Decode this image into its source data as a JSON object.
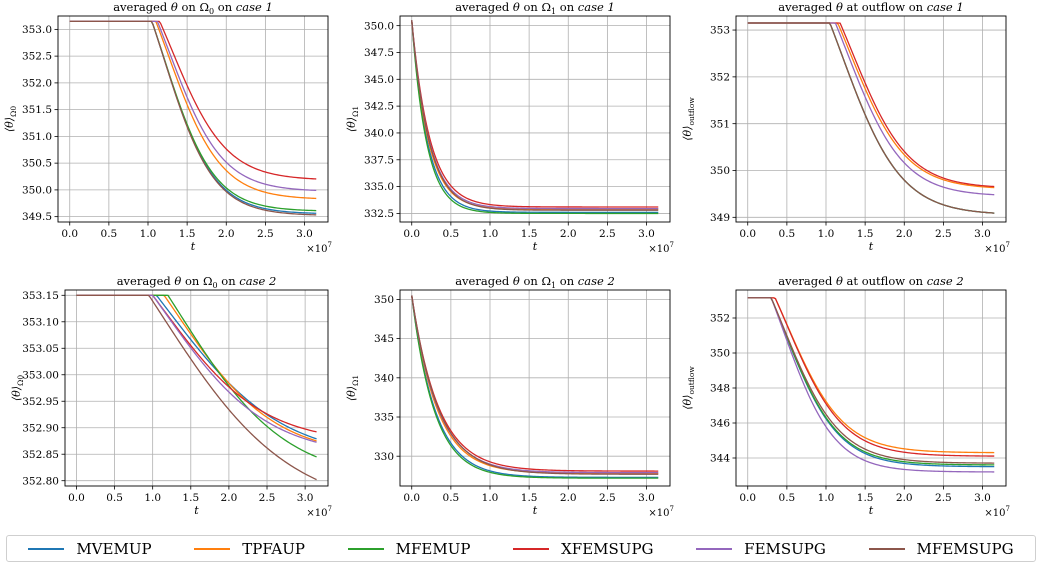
{
  "colors": {
    "MVEMUP": "#1f77b4",
    "TPFAUP": "#ff7f0e",
    "MFEMUP": "#2ca02c",
    "XFEMSUPG": "#d62728",
    "FEMSUPG": "#9467bd",
    "MFEMSUPG": "#8c564b"
  },
  "legend": [
    "MVEMUP",
    "TPFAUP",
    "MFEMUP",
    "XFEMSUPG",
    "FEMSUPG",
    "MFEMSUPG"
  ],
  "chart_data": [
    {
      "type": "line",
      "title": "averaged θ on Ω0 on case 1",
      "title_parts": [
        "averaged ",
        "θ",
        " on ",
        "Ω",
        "0",
        " on ",
        "case 1"
      ],
      "xlabel": "t",
      "x_multiplier": "×10",
      "x_exponent": "7",
      "ylabel_main": "⟨θ⟩",
      "ylabel_sub": "Ω0",
      "xlim": [
        -0.15,
        3.3
      ],
      "ylim": [
        349.4,
        353.25
      ],
      "xticks": [
        0.0,
        0.5,
        1.0,
        1.5,
        2.0,
        2.5,
        3.0
      ],
      "yticks": [
        349.5,
        350.0,
        350.5,
        351.0,
        351.5,
        352.0,
        352.5,
        353.0
      ],
      "ytick_format": 1,
      "grid": true,
      "series": [
        {
          "name": "MVEMUP",
          "start": 353.15,
          "end": 349.55,
          "t0": 1.05,
          "tau": 0.32
        },
        {
          "name": "TPFAUP",
          "start": 353.15,
          "end": 349.82,
          "t0": 1.1,
          "tau": 0.34
        },
        {
          "name": "MFEMUP",
          "start": 353.15,
          "end": 349.6,
          "t0": 1.05,
          "tau": 0.32
        },
        {
          "name": "XFEMSUPG",
          "start": 353.15,
          "end": 350.18,
          "t0": 1.15,
          "tau": 0.35
        },
        {
          "name": "FEMSUPG",
          "start": 353.15,
          "end": 349.97,
          "t0": 1.12,
          "tau": 0.34
        },
        {
          "name": "MFEMSUPG",
          "start": 353.15,
          "end": 349.52,
          "t0": 1.05,
          "tau": 0.32
        }
      ]
    },
    {
      "type": "line",
      "title": "averaged θ on Ω1 on case 1",
      "title_parts": [
        "averaged ",
        "θ",
        " on ",
        "Ω",
        "1",
        " on ",
        "case 1"
      ],
      "xlabel": "t",
      "x_multiplier": "×10",
      "x_exponent": "7",
      "ylabel_main": "⟨θ⟩",
      "ylabel_sub": "Ω1",
      "xlim": [
        -0.15,
        3.3
      ],
      "ylim": [
        331.7,
        350.9
      ],
      "xticks": [
        0.0,
        0.5,
        1.0,
        1.5,
        2.0,
        2.5,
        3.0
      ],
      "yticks": [
        332.5,
        335.0,
        337.5,
        340.0,
        342.5,
        345.0,
        347.5,
        350.0
      ],
      "ytick_format": 1,
      "grid": true,
      "series": [
        {
          "name": "MVEMUP",
          "start": 350.5,
          "end": 332.6,
          "t0": 0.0,
          "tau": 0.2
        },
        {
          "name": "TPFAUP",
          "start": 350.5,
          "end": 332.9,
          "t0": 0.0,
          "tau": 0.21
        },
        {
          "name": "MFEMUP",
          "start": 350.5,
          "end": 332.5,
          "t0": 0.0,
          "tau": 0.19
        },
        {
          "name": "XFEMSUPG",
          "start": 350.5,
          "end": 333.1,
          "t0": 0.0,
          "tau": 0.23
        },
        {
          "name": "FEMSUPG",
          "start": 350.5,
          "end": 332.95,
          "t0": 0.0,
          "tau": 0.22
        },
        {
          "name": "MFEMSUPG",
          "start": 350.5,
          "end": 332.8,
          "t0": 0.0,
          "tau": 0.22
        }
      ]
    },
    {
      "type": "line",
      "title": "averaged θ at outflow on case 1",
      "title_parts": [
        "averaged ",
        "θ",
        " at outflow on ",
        "",
        "",
        "",
        "case 1"
      ],
      "xlabel": "t",
      "x_multiplier": "×10",
      "x_exponent": "7",
      "ylabel_main": "⟨θ⟩",
      "ylabel_sub": "outflow",
      "xlim": [
        -0.15,
        3.3
      ],
      "ylim": [
        348.9,
        353.3
      ],
      "xticks": [
        0.0,
        0.5,
        1.0,
        1.5,
        2.0,
        2.5,
        3.0
      ],
      "yticks": [
        349,
        350,
        351,
        352,
        353
      ],
      "ytick_format": 0,
      "grid": true,
      "series": [
        {
          "name": "MVEMUP",
          "start": 353.15,
          "end": 349.05,
          "t0": 1.05,
          "tau": 0.38
        },
        {
          "name": "TPFAUP",
          "start": 353.15,
          "end": 349.6,
          "t0": 1.15,
          "tau": 0.36
        },
        {
          "name": "MFEMUP",
          "start": 353.15,
          "end": 349.05,
          "t0": 1.05,
          "tau": 0.38
        },
        {
          "name": "XFEMSUPG",
          "start": 353.15,
          "end": 349.62,
          "t0": 1.18,
          "tau": 0.36
        },
        {
          "name": "FEMSUPG",
          "start": 353.15,
          "end": 349.45,
          "t0": 1.12,
          "tau": 0.36
        },
        {
          "name": "MFEMSUPG",
          "start": 353.15,
          "end": 349.05,
          "t0": 1.05,
          "tau": 0.38
        }
      ]
    },
    {
      "type": "line",
      "title": "averaged θ on Ω0 on case 2",
      "title_parts": [
        "averaged ",
        "θ",
        " on ",
        "Ω",
        "0",
        " on ",
        "case 2"
      ],
      "xlabel": "t",
      "x_multiplier": "×10",
      "x_exponent": "7",
      "ylabel_main": "⟨θ⟩",
      "ylabel_sub": "Ω0",
      "xlim": [
        -0.15,
        3.3
      ],
      "ylim": [
        352.79,
        353.16
      ],
      "xticks": [
        0.0,
        0.5,
        1.0,
        1.5,
        2.0,
        2.5,
        3.0
      ],
      "yticks": [
        352.8,
        352.85,
        352.9,
        352.95,
        353.0,
        353.05,
        353.1,
        353.15
      ],
      "ytick_format": 2,
      "grid": true,
      "series": [
        {
          "name": "MVEMUP",
          "start": 353.15,
          "end": 352.84,
          "t0": 1.05,
          "tau": 0.75
        },
        {
          "name": "TPFAUP",
          "start": 353.15,
          "end": 352.845,
          "t0": 1.15,
          "tau": 0.65
        },
        {
          "name": "MFEMUP",
          "start": 353.15,
          "end": 352.8,
          "t0": 1.2,
          "tau": 0.7
        },
        {
          "name": "XFEMSUPG",
          "start": 353.15,
          "end": 352.87,
          "t0": 1.0,
          "tau": 0.65
        },
        {
          "name": "FEMSUPG",
          "start": 353.15,
          "end": 352.845,
          "t0": 1.0,
          "tau": 0.68
        },
        {
          "name": "MFEMSUPG",
          "start": 353.15,
          "end": 352.74,
          "t0": 0.95,
          "tau": 0.85
        }
      ]
    },
    {
      "type": "line",
      "title": "averaged θ on Ω1 on case 2",
      "title_parts": [
        "averaged ",
        "θ",
        " on ",
        "Ω",
        "1",
        " on ",
        "case 2"
      ],
      "xlabel": "t",
      "x_multiplier": "×10",
      "x_exponent": "7",
      "ylabel_main": "⟨θ⟩",
      "ylabel_sub": "Ω1",
      "xlim": [
        -0.15,
        3.3
      ],
      "ylim": [
        326.2,
        351.2
      ],
      "xticks": [
        0.0,
        0.5,
        1.0,
        1.5,
        2.0,
        2.5,
        3.0
      ],
      "yticks": [
        330,
        335,
        340,
        345,
        350
      ],
      "ytick_format": 0,
      "grid": true,
      "series": [
        {
          "name": "MVEMUP",
          "start": 350.5,
          "end": 327.3,
          "t0": 0.0,
          "tau": 0.3
        },
        {
          "name": "TPFAUP",
          "start": 350.5,
          "end": 327.8,
          "t0": 0.0,
          "tau": 0.32
        },
        {
          "name": "MFEMUP",
          "start": 350.5,
          "end": 327.2,
          "t0": 0.0,
          "tau": 0.29
        },
        {
          "name": "XFEMSUPG",
          "start": 350.5,
          "end": 328.1,
          "t0": 0.0,
          "tau": 0.34
        },
        {
          "name": "FEMSUPG",
          "start": 350.5,
          "end": 327.9,
          "t0": 0.0,
          "tau": 0.33
        },
        {
          "name": "MFEMSUPG",
          "start": 350.5,
          "end": 327.7,
          "t0": 0.0,
          "tau": 0.34
        }
      ]
    },
    {
      "type": "line",
      "title": "averaged θ at outflow on case 2",
      "title_parts": [
        "averaged ",
        "θ",
        " at outflow on ",
        "",
        "",
        "",
        "case 2"
      ],
      "xlabel": "t",
      "x_multiplier": "×10",
      "x_exponent": "7",
      "ylabel_main": "⟨θ⟩",
      "ylabel_sub": "outflow",
      "xlim": [
        -0.15,
        3.3
      ],
      "ylim": [
        342.4,
        353.6
      ],
      "xticks": [
        0.0,
        0.5,
        1.0,
        1.5,
        2.0,
        2.5,
        3.0
      ],
      "yticks": [
        344,
        346,
        348,
        350,
        352
      ],
      "ytick_format": 0,
      "grid": true,
      "series": [
        {
          "name": "MVEMUP",
          "start": 353.15,
          "end": 343.5,
          "t0": 0.3,
          "tau": 0.35
        },
        {
          "name": "TPFAUP",
          "start": 353.15,
          "end": 344.3,
          "t0": 0.35,
          "tau": 0.36
        },
        {
          "name": "MFEMUP",
          "start": 353.15,
          "end": 343.6,
          "t0": 0.3,
          "tau": 0.35
        },
        {
          "name": "XFEMSUPG",
          "start": 353.15,
          "end": 344.1,
          "t0": 0.35,
          "tau": 0.36
        },
        {
          "name": "FEMSUPG",
          "start": 353.15,
          "end": 343.2,
          "t0": 0.3,
          "tau": 0.33
        },
        {
          "name": "MFEMSUPG",
          "start": 353.15,
          "end": 343.7,
          "t0": 0.3,
          "tau": 0.36
        }
      ]
    }
  ]
}
